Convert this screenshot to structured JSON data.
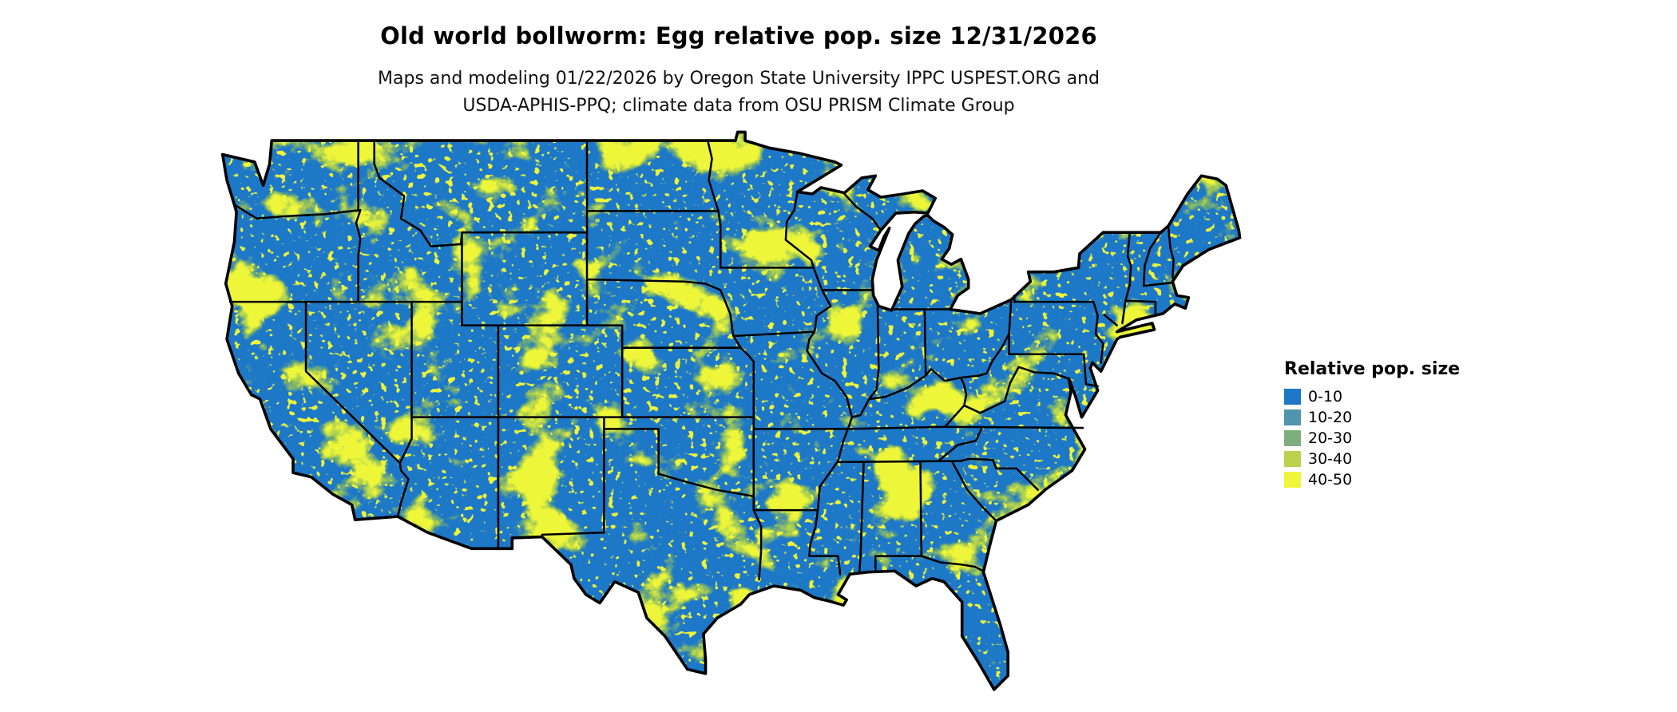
{
  "header": {
    "title": "Old world bollworm: Egg relative pop. size 12/31/2026",
    "subtitle_line1": "Maps and modeling 01/22/2026 by Oregon State University IPPC USPEST.ORG and",
    "subtitle_line2": "USDA-APHIS-PPQ; climate data from OSU PRISM Climate Group"
  },
  "legend": {
    "title": "Relative pop. size",
    "items": [
      {
        "label": "0-10",
        "color": "#1d78c8"
      },
      {
        "label": "10-20",
        "color": "#4f95ad"
      },
      {
        "label": "20-30",
        "color": "#7fae7e"
      },
      {
        "label": "30-40",
        "color": "#bcd24f"
      },
      {
        "label": "40-50",
        "color": "#eef63a"
      }
    ]
  },
  "map": {
    "base_color": "#1d78c8",
    "speckle_mid_color": "#8fbe5e",
    "speckle_high_color": "#eef63a",
    "boundary_color": "#000000"
  }
}
